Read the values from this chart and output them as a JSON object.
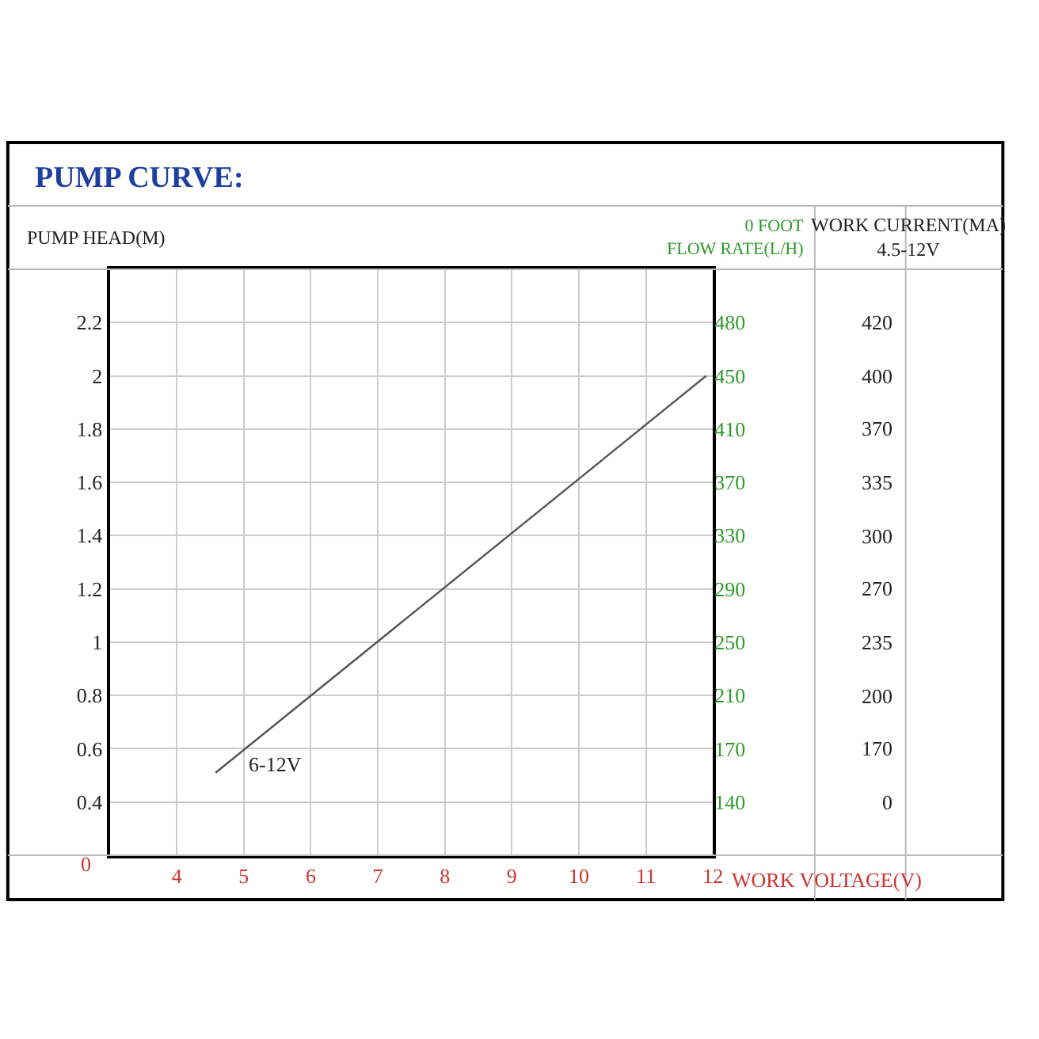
{
  "chart_data": {
    "type": "line",
    "title": "PUMP CURVE:",
    "xlabel": "WORK VOLTAGE(V)",
    "ylabel": "PUMP HEAD(M)",
    "y2label": "0 FOOT\nFLOW RATE(L/H)",
    "y3label": "WORK CURRENT(MA)\n4.5-12V",
    "series": [
      {
        "color": "#555555",
        "x": [
          4.58,
          11.9
        ],
        "values": [
          0.51,
          2.0
        ]
      }
    ],
    "annotations": [
      "6-12V",
      "0",
      "420",
      "400",
      "370",
      "335",
      "300",
      "270",
      "235",
      "200",
      "170",
      "0"
    ],
    "xlim": [
      3,
      12
    ],
    "xticks": [
      4,
      5,
      6,
      7,
      8,
      9,
      10,
      11,
      12
    ],
    "ylim": [
      0.2,
      2.4
    ],
    "yticks": [
      0.4,
      0.6,
      0.8,
      1,
      1.2,
      1.4,
      1.6,
      1.8,
      2,
      2.2
    ],
    "y2_categories": [
      "480",
      "450",
      "410",
      "370",
      "330",
      "290",
      "250",
      "210",
      "170",
      "140"
    ],
    "grid": true,
    "marker": "none",
    "line_style": "solid",
    "legend": false
  }
}
